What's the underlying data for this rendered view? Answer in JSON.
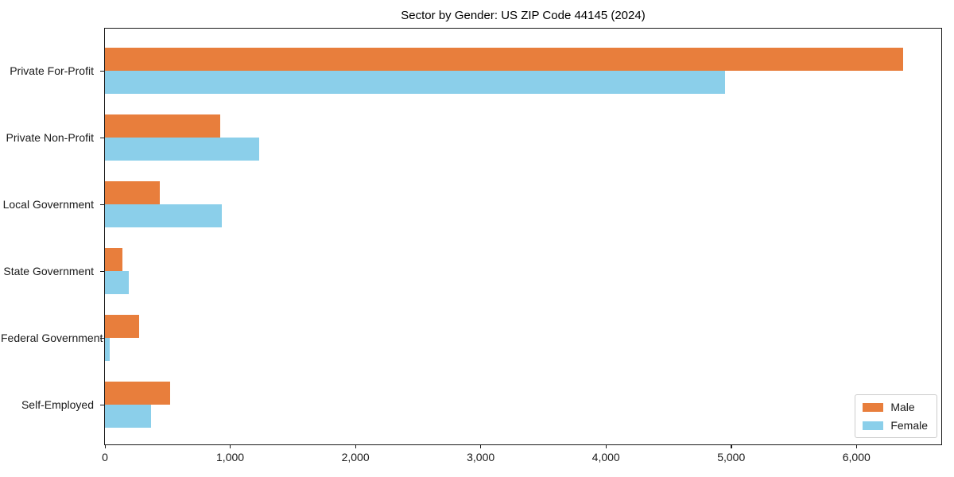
{
  "chart_data": {
    "type": "bar",
    "orientation": "horizontal",
    "title": "Sector by Gender: US ZIP Code 44145 (2024)",
    "categories": [
      "Private For-Profit",
      "Private Non-Profit",
      "Local Government",
      "State Government",
      "Federal Government",
      "Self-Employed"
    ],
    "series": [
      {
        "name": "Male",
        "color": "#e87e3c",
        "values": [
          6375,
          920,
          440,
          140,
          275,
          520
        ]
      },
      {
        "name": "Female",
        "color": "#8bcfea",
        "values": [
          4950,
          1230,
          930,
          190,
          40,
          370
        ]
      }
    ],
    "xlabel": "",
    "ylabel": "",
    "xlim": [
      0,
      6690
    ],
    "xticks": [
      0,
      1000,
      2000,
      3000,
      4000,
      5000,
      6000
    ],
    "xtick_labels": [
      "0",
      "1,000",
      "2,000",
      "3,000",
      "4,000",
      "5,000",
      "6,000"
    ],
    "grid": false,
    "legend": {
      "position": "lower right"
    },
    "axis_color": "#1a1a1a"
  }
}
